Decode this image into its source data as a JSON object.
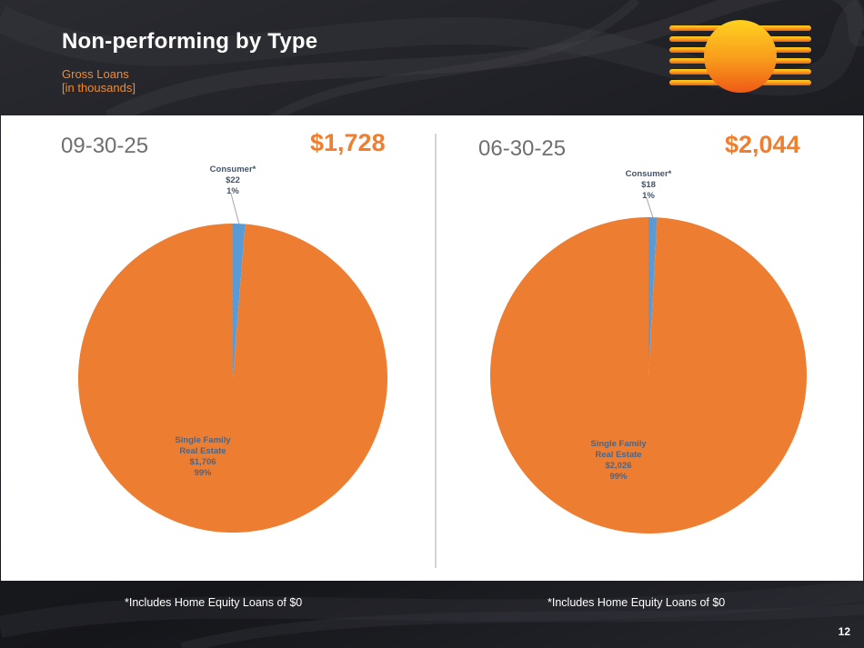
{
  "slide": {
    "title": "Non-performing by Type",
    "subtitle_line1": "Gross Loans",
    "subtitle_line2": "[in thousands]",
    "page_number": "12",
    "footnote_left": "*Includes Home Equity Loans of $0",
    "footnote_right": "*Includes Home Equity Loans of $0"
  },
  "colors": {
    "accent": "#ef7e2f",
    "single_family": "#ed7d31",
    "consumer": "#5b9bd5",
    "label_consumer": "#44546a",
    "label_single_family": "#4f6480"
  },
  "chart_data": [
    {
      "type": "pie",
      "date": "09-30-25",
      "total": "$1,728",
      "slices": [
        {
          "name": "Consumer*",
          "value": 22,
          "value_label": "$22",
          "pct": "1%",
          "color": "#5b9bd5"
        },
        {
          "name_lines": [
            "Single Family",
            "Real Estate"
          ],
          "value": 1706,
          "value_label": "$1,706",
          "pct": "99%",
          "color": "#ed7d31"
        }
      ]
    },
    {
      "type": "pie",
      "date": "06-30-25",
      "total": "$2,044",
      "slices": [
        {
          "name": "Consumer*",
          "value": 18,
          "value_label": "$18",
          "pct": "1%",
          "color": "#5b9bd5"
        },
        {
          "name_lines": [
            "Single Family",
            "Real Estate"
          ],
          "value": 2026,
          "value_label": "$2,026",
          "pct": "99%",
          "color": "#ed7d31"
        }
      ]
    }
  ]
}
